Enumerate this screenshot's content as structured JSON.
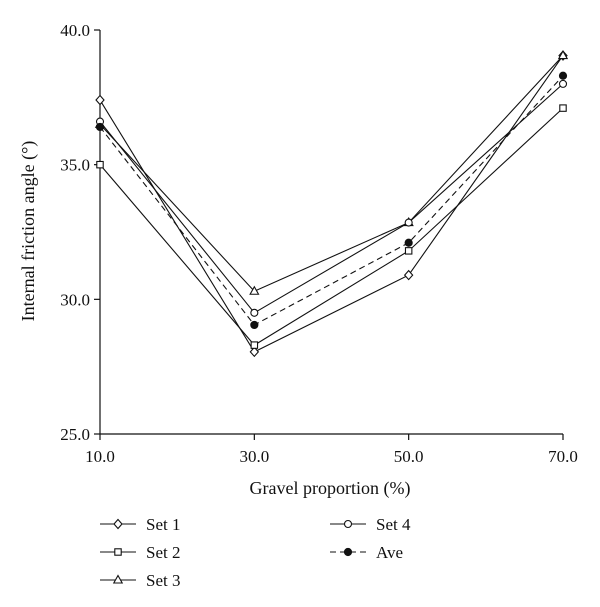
{
  "chart_data": {
    "type": "line",
    "xlabel": "Gravel proportion (%)",
    "ylabel": "Internal friction angle (°)",
    "x": [
      10,
      30,
      50,
      70
    ],
    "x_tick_labels": [
      "10.0",
      "30.0",
      "50.0",
      "70.0"
    ],
    "y_tick_values": [
      25,
      30,
      35,
      40
    ],
    "y_tick_labels": [
      "25.0",
      "30.0",
      "35.0",
      "40.0"
    ],
    "xlim": [
      10,
      70
    ],
    "ylim": [
      25,
      40
    ],
    "grid": false,
    "legend_position": "bottom",
    "series": [
      {
        "name": "Set 1",
        "marker": "diamond",
        "line": "solid",
        "values": [
          37.4,
          28.05,
          30.9,
          39.05
        ]
      },
      {
        "name": "Set 2",
        "marker": "square",
        "line": "solid",
        "values": [
          35.0,
          28.3,
          31.8,
          37.1
        ]
      },
      {
        "name": "Set 3",
        "marker": "triangle",
        "line": "solid",
        "values": [
          36.5,
          30.3,
          32.85,
          39.05
        ]
      },
      {
        "name": "Set 4",
        "marker": "circle",
        "line": "solid",
        "values": [
          36.6,
          29.5,
          32.85,
          38.0
        ]
      },
      {
        "name": "Ave",
        "marker": "filled-circle",
        "line": "dashed",
        "values": [
          36.4,
          29.05,
          32.1,
          38.3
        ]
      }
    ]
  }
}
